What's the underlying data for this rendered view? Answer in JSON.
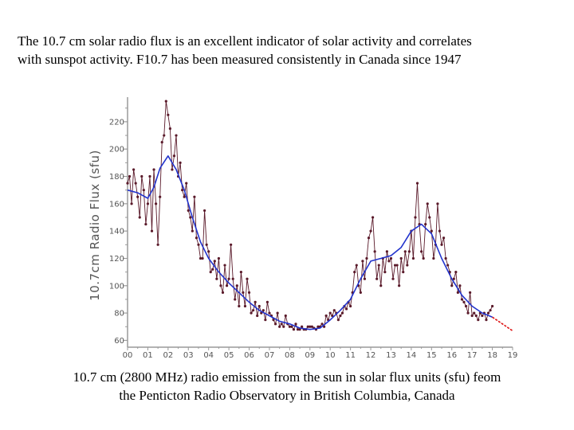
{
  "captions": {
    "top_line1": "The 10.7 cm solar radio flux is an excellent indicator of solar activity and correlates",
    "top_line2": "with sunspot activity.  F10.7 has been measured consistently in Canada since 1947",
    "bottom_line1": "10.7 cm (2800 MHz) radio emission from the sun in solar flux units (sfu) feom",
    "bottom_line2": "the Penticton Radio Observatory in British Columbia, Canada"
  },
  "colors": {
    "monthly": "#5a1a2a",
    "smoothed": "#2233cc",
    "forecast": "#dd1111",
    "axis": "#9a9a9a",
    "tick_text": "#555555"
  },
  "chart_data": {
    "type": "line",
    "xlabel": "",
    "ylabel": "10.7cm Radio Flux (sfu)",
    "xlim": [
      2000.0,
      2019.0
    ],
    "ylim": [
      55,
      238
    ],
    "x_ticks": [
      "00",
      "01",
      "02",
      "03",
      "04",
      "05",
      "06",
      "07",
      "08",
      "09",
      "10",
      "11",
      "12",
      "13",
      "14",
      "15",
      "16",
      "17",
      "18",
      "19"
    ],
    "y_ticks": [
      60,
      80,
      100,
      120,
      140,
      160,
      180,
      200,
      220
    ],
    "grid": false,
    "series": [
      {
        "kind": "monthly",
        "x": [
          2000.0,
          2000.1,
          2000.2,
          2000.3,
          2000.4,
          2000.5,
          2000.6,
          2000.7,
          2000.8,
          2000.9,
          2001.0,
          2001.1,
          2001.2,
          2001.3,
          2001.4,
          2001.5,
          2001.6,
          2001.7,
          2001.8,
          2001.9,
          2002.0,
          2002.1,
          2002.2,
          2002.3,
          2002.4,
          2002.5,
          2002.6,
          2002.7,
          2002.8,
          2002.9,
          2003.0,
          2003.1,
          2003.2,
          2003.3,
          2003.4,
          2003.5,
          2003.6,
          2003.7,
          2003.8,
          2003.9,
          2004.0,
          2004.1,
          2004.2,
          2004.3,
          2004.4,
          2004.5,
          2004.6,
          2004.7,
          2004.8,
          2004.9,
          2005.0,
          2005.1,
          2005.2,
          2005.3,
          2005.4,
          2005.5,
          2005.6,
          2005.7,
          2005.8,
          2005.9,
          2006.0,
          2006.1,
          2006.2,
          2006.3,
          2006.4,
          2006.5,
          2006.6,
          2006.7,
          2006.8,
          2006.9,
          2007.0,
          2007.1,
          2007.2,
          2007.3,
          2007.4,
          2007.5,
          2007.6,
          2007.7,
          2007.8,
          2007.9,
          2008.0,
          2008.1,
          2008.2,
          2008.3,
          2008.4,
          2008.5,
          2008.6,
          2008.7,
          2008.8,
          2008.9,
          2009.0,
          2009.1,
          2009.2,
          2009.3,
          2009.4,
          2009.5,
          2009.6,
          2009.7,
          2009.8,
          2009.9,
          2010.0,
          2010.1,
          2010.2,
          2010.3,
          2010.4,
          2010.5,
          2010.6,
          2010.7,
          2010.8,
          2010.9,
          2011.0,
          2011.1,
          2011.2,
          2011.3,
          2011.4,
          2011.5,
          2011.6,
          2011.7,
          2011.8,
          2011.9,
          2012.0,
          2012.1,
          2012.2,
          2012.3,
          2012.4,
          2012.5,
          2012.6,
          2012.7,
          2012.8,
          2012.9,
          2013.0,
          2013.1,
          2013.2,
          2013.3,
          2013.4,
          2013.5,
          2013.6,
          2013.7,
          2013.8,
          2013.9,
          2014.0,
          2014.1,
          2014.2,
          2014.3,
          2014.4,
          2014.5,
          2014.6,
          2014.7,
          2014.8,
          2014.9,
          2015.0,
          2015.1,
          2015.2,
          2015.3,
          2015.4,
          2015.5,
          2015.6,
          2015.7,
          2015.8,
          2015.9,
          2016.0,
          2016.1,
          2016.2,
          2016.3,
          2016.4,
          2016.5,
          2016.6,
          2016.7,
          2016.8,
          2016.9,
          2017.0,
          2017.1,
          2017.2,
          2017.3,
          2017.4,
          2017.5,
          2017.6,
          2017.7,
          2017.8,
          2017.9,
          2018.0
        ],
        "values": [
          175,
          180,
          160,
          185,
          175,
          165,
          150,
          180,
          170,
          145,
          160,
          180,
          140,
          185,
          160,
          130,
          165,
          205,
          210,
          235,
          225,
          215,
          185,
          195,
          210,
          180,
          190,
          170,
          165,
          175,
          155,
          150,
          140,
          165,
          135,
          130,
          120,
          120,
          155,
          130,
          125,
          110,
          112,
          118,
          105,
          120,
          100,
          95,
          115,
          100,
          105,
          130,
          105,
          90,
          100,
          85,
          110,
          95,
          85,
          105,
          95,
          80,
          82,
          88,
          78,
          85,
          80,
          82,
          75,
          88,
          80,
          78,
          75,
          72,
          80,
          70,
          72,
          70,
          78,
          72,
          70,
          70,
          68,
          72,
          68,
          68,
          70,
          68,
          68,
          70,
          70,
          70,
          69,
          68,
          70,
          70,
          72,
          70,
          78,
          75,
          80,
          78,
          82,
          80,
          75,
          78,
          80,
          85,
          83,
          88,
          85,
          95,
          110,
          115,
          100,
          95,
          118,
          105,
          120,
          135,
          140,
          150,
          125,
          105,
          115,
          100,
          120,
          110,
          125,
          118,
          120,
          105,
          115,
          115,
          100,
          120,
          110,
          125,
          115,
          125,
          140,
          120,
          150,
          175,
          145,
          125,
          120,
          145,
          160,
          150,
          140,
          120,
          130,
          160,
          140,
          130,
          135,
          120,
          115,
          110,
          100,
          105,
          110,
          95,
          100,
          90,
          88,
          85,
          80,
          95,
          78,
          80,
          78,
          75,
          80,
          78,
          80,
          75,
          80,
          82,
          85
        ],
        "point_marker": "dot"
      },
      {
        "kind": "smoothed",
        "x": [
          2000.0,
          2000.5,
          2001.0,
          2001.3,
          2001.6,
          2002.0,
          2002.4,
          2002.8,
          2003.2,
          2003.6,
          2004.0,
          2004.5,
          2005.0,
          2005.5,
          2006.0,
          2006.5,
          2007.0,
          2007.5,
          2008.0,
          2008.5,
          2009.0,
          2009.5,
          2010.0,
          2010.5,
          2011.0,
          2011.5,
          2012.0,
          2012.5,
          2013.0,
          2013.5,
          2014.0,
          2014.5,
          2015.0,
          2015.5,
          2016.0,
          2016.5,
          2017.0,
          2017.5,
          2018.0
        ],
        "values": [
          170,
          168,
          164,
          172,
          186,
          195,
          185,
          170,
          150,
          132,
          120,
          110,
          102,
          95,
          88,
          82,
          78,
          74,
          72,
          69,
          68,
          69,
          75,
          82,
          90,
          105,
          118,
          120,
          122,
          128,
          140,
          145,
          138,
          120,
          105,
          93,
          85,
          80,
          77
        ]
      },
      {
        "kind": "forecast",
        "x": [
          2018.0,
          2018.2,
          2018.4,
          2018.6,
          2018.8,
          2019.0
        ],
        "values": [
          77,
          75,
          73,
          71,
          69,
          67
        ]
      }
    ]
  }
}
